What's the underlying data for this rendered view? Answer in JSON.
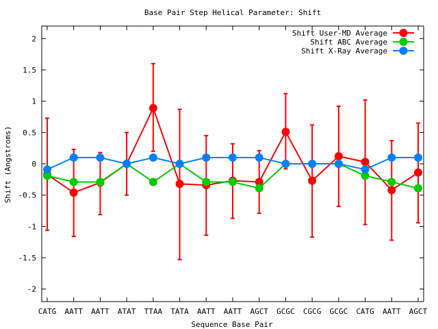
{
  "chart_data": {
    "type": "line",
    "title": "Base Pair Step Helical Parameter: Shift",
    "xlabel": "Sequence Base Pair",
    "ylabel": "Shift (Angstroms)",
    "ylim": [
      -2.2,
      2.2
    ],
    "yticks": [
      -2,
      -1.5,
      -1,
      -0.5,
      0,
      0.5,
      1,
      1.5,
      2
    ],
    "ytick_labels": [
      "-2",
      "-1.5",
      "-1",
      "-0.5",
      "0",
      "0.5",
      "1",
      "1.5",
      "2"
    ],
    "categories": [
      "CATG",
      "AATT",
      "AATT",
      "ATAT",
      "TTAA",
      "TATA",
      "AATT",
      "AATT",
      "AGCT",
      "GCGC",
      "CGCG",
      "GCGC",
      "CATG",
      "AATT",
      "AGCT"
    ],
    "grid": false,
    "legend_position": "top-right",
    "series": [
      {
        "name": "Shift User-MD Average",
        "color": "#ff0000",
        "values": [
          -0.17,
          -0.46,
          -0.3,
          0.0,
          0.89,
          -0.32,
          -0.34,
          -0.27,
          -0.29,
          0.51,
          -0.27,
          0.12,
          0.03,
          -0.42,
          -0.14
        ],
        "error_low": [
          -1.06,
          -1.16,
          -0.81,
          -0.5,
          0.2,
          -1.53,
          -1.14,
          -0.87,
          -0.79,
          -0.08,
          -1.17,
          -0.68,
          -0.97,
          -1.22,
          -0.94
        ],
        "error_high": [
          0.73,
          0.23,
          0.18,
          0.5,
          1.6,
          0.87,
          0.45,
          0.32,
          0.21,
          1.12,
          0.62,
          0.92,
          1.02,
          0.37,
          0.65
        ]
      },
      {
        "name": "Shift ABC Average",
        "color": "#00cc00",
        "values": [
          -0.19,
          -0.29,
          -0.29,
          0.0,
          -0.29,
          0.0,
          -0.29,
          -0.29,
          -0.39,
          0.0,
          0.0,
          0.0,
          -0.19,
          -0.29,
          -0.39
        ]
      },
      {
        "name": "Shift X-Ray Average",
        "color": "#0080ff",
        "values": [
          -0.09,
          0.1,
          0.1,
          0.0,
          0.1,
          0.0,
          0.1,
          0.1,
          0.1,
          0.0,
          0.0,
          0.0,
          -0.09,
          0.1,
          0.1
        ]
      }
    ]
  }
}
